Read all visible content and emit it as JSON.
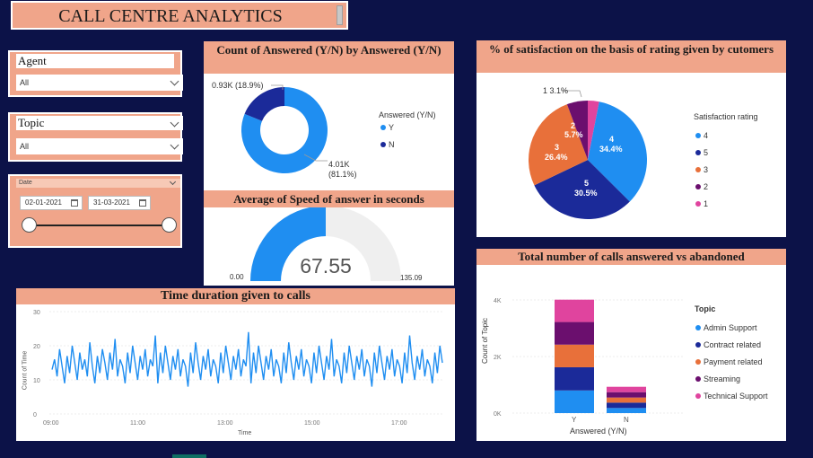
{
  "header": {
    "title": "CALL CENTRE ANALYTICS"
  },
  "slicers": {
    "agent": {
      "label": "Agent",
      "value": "All"
    },
    "topic": {
      "label": "Topic",
      "value": "All"
    },
    "date": {
      "label": "Date",
      "start": "02-01-2021",
      "end": "31-03-2021"
    }
  },
  "answered_donut": {
    "title": "Count of Answered (Y/N) by Answered (Y/N)",
    "legend_title": "Answered (Y/N)",
    "legend": [
      {
        "name": "Y",
        "color": "#1f8ef1"
      },
      {
        "name": "N",
        "color": "#1b2a99"
      }
    ],
    "label_n": "0.93K (18.9%)",
    "label_y_1": "4.01K",
    "label_y_2": "(81.1%)"
  },
  "speed_gauge": {
    "title": "Average of Speed of answer in seconds",
    "value": "67.55",
    "min": "0.00",
    "max": "135.09",
    "fill_fraction": 0.5
  },
  "satisfaction_pie": {
    "title": "% of satisfaction on the basis of rating given by cutomers",
    "legend_title": "Satisfaction rating",
    "legend": [
      {
        "name": "4",
        "color": "#1f8ef1"
      },
      {
        "name": "5",
        "color": "#1b2a99"
      },
      {
        "name": "3",
        "color": "#e8703a"
      },
      {
        "name": "2",
        "color": "#6b0f6e"
      },
      {
        "name": "1",
        "color": "#e0449e"
      }
    ],
    "labels": {
      "r1": "1 3.1%",
      "r2a": "2",
      "r2b": "5.7%",
      "r3a": "3",
      "r3b": "26.4%",
      "r4a": "4",
      "r4b": "34.4%",
      "r5a": "5",
      "r5b": "30.5%"
    }
  },
  "time_duration": {
    "title": "Time duration given to calls",
    "ylabel": "Count of Time",
    "xlabel": "Time",
    "yticks": [
      "30",
      "20",
      "10",
      "0"
    ],
    "xticks": [
      "09:00",
      "11:00",
      "13:00",
      "15:00",
      "17:00"
    ]
  },
  "calls_bar": {
    "title": "Total number of calls answered vs abandoned",
    "ylabel": "Count of Topic",
    "xlabel": "Answered (Y/N)",
    "yticks": [
      "4K",
      "2K",
      "0K"
    ],
    "legend_title": "Topic",
    "legend": [
      {
        "name": "Admin Support",
        "color": "#1f8ef1"
      },
      {
        "name": "Contract related",
        "color": "#1b2a99"
      },
      {
        "name": "Payment related",
        "color": "#e8703a"
      },
      {
        "name": "Streaming",
        "color": "#6b0f6e"
      },
      {
        "name": "Technical Support",
        "color": "#e0449e"
      }
    ]
  },
  "chart_data": [
    {
      "type": "pie",
      "title": "Count of Answered (Y/N) by Answered (Y/N)",
      "categories": [
        "Y",
        "N"
      ],
      "values": [
        4010,
        930
      ],
      "percent": [
        81.1,
        18.9
      ]
    },
    {
      "type": "pie",
      "title": "% of satisfaction on the basis of rating given by cutomers",
      "categories": [
        "4",
        "5",
        "3",
        "2",
        "1"
      ],
      "values": [
        34.4,
        30.5,
        26.4,
        5.7,
        3.1
      ]
    },
    {
      "type": "line",
      "title": "Time duration given to calls",
      "xlabel": "Time",
      "ylabel": "Count of Time",
      "ylim": [
        0,
        30
      ],
      "xlim": [
        "09:00",
        "18:00"
      ],
      "y": [
        13,
        16,
        11,
        19,
        14,
        9,
        17,
        12,
        20,
        15,
        10,
        18,
        13,
        16,
        11,
        21,
        14,
        9,
        17,
        12,
        19,
        15,
        10,
        18,
        13,
        22,
        11,
        16,
        14,
        9,
        18,
        12,
        20,
        15,
        10,
        17,
        13,
        19,
        11,
        16,
        14,
        23,
        9,
        18,
        12,
        20,
        15,
        10,
        17,
        13,
        19,
        11,
        16,
        14,
        8,
        18,
        12,
        21,
        15,
        10,
        17,
        13,
        19,
        11,
        16,
        14,
        9,
        18,
        12,
        20,
        15,
        10,
        17,
        13,
        19,
        11,
        16,
        14,
        24,
        9,
        18,
        12,
        20,
        15,
        10,
        17,
        13,
        19,
        11,
        16,
        14,
        9,
        18,
        12,
        21,
        15,
        10,
        17,
        13,
        19,
        11,
        16,
        14,
        9,
        18,
        12,
        20,
        15,
        10,
        17,
        13,
        22,
        11,
        16,
        14,
        9,
        18,
        12,
        20,
        15,
        10,
        17,
        13,
        19,
        11,
        16,
        14,
        8,
        18,
        12,
        20,
        15,
        10,
        17,
        13,
        19,
        11,
        16,
        14,
        9,
        18,
        12,
        23,
        15,
        10,
        17,
        13,
        19,
        11,
        16,
        14,
        9,
        18,
        12,
        20,
        15
      ]
    },
    {
      "type": "bar",
      "title": "Total number of calls answered vs abandoned",
      "xlabel": "Answered (Y/N)",
      "ylabel": "Count of Topic",
      "categories": [
        "Y",
        "N"
      ],
      "ylim": [
        0,
        4000
      ],
      "series": [
        {
          "name": "Admin Support",
          "values": [
            800,
            180
          ]
        },
        {
          "name": "Contract related",
          "values": [
            820,
            190
          ]
        },
        {
          "name": "Payment related",
          "values": [
            800,
            180
          ]
        },
        {
          "name": "Streaming",
          "values": [
            800,
            190
          ]
        },
        {
          "name": "Technical Support",
          "values": [
            790,
            190
          ]
        }
      ]
    }
  ]
}
